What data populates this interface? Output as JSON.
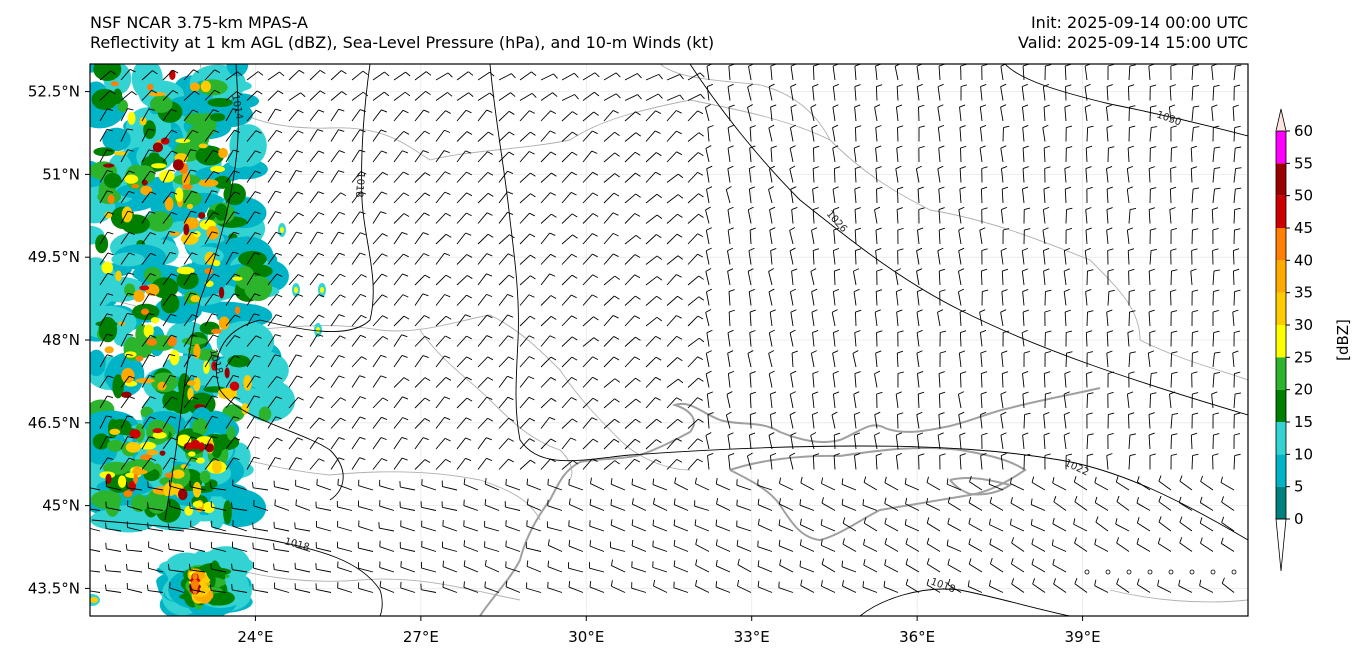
{
  "header": {
    "title_line1": "NSF NCAR 3.75-km MPAS-A",
    "title_line2": "Reflectivity at 1 km AGL (dBZ), Sea-Level Pressure (hPa), and 10-m Winds (kt)",
    "init": "Init: 2025-09-14 00:00 UTC",
    "valid": "Valid: 2025-09-14 15:00 UTC"
  },
  "map": {
    "lon_range": [
      21,
      42
    ],
    "lat_range": [
      43.0,
      53.0
    ],
    "lon_ticks": [
      "24°E",
      "27°E",
      "30°E",
      "33°E",
      "36°E",
      "39°E"
    ],
    "lon_tick_values": [
      24,
      27,
      30,
      33,
      36,
      39
    ],
    "lat_ticks": [
      "52.5°N",
      "51°N",
      "49.5°N",
      "48°N",
      "46.5°N",
      "45°N",
      "43.5°N"
    ],
    "lat_tick_values": [
      52.5,
      51,
      49.5,
      48,
      46.5,
      45,
      43.5
    ],
    "isobar_labels": [
      "1014",
      "1018",
      "1018",
      "1018",
      "1026",
      "1030",
      "1022",
      "1018"
    ]
  },
  "colorbar": {
    "label": "[dBZ]",
    "ticks": [
      "0",
      "5",
      "10",
      "15",
      "20",
      "25",
      "30",
      "35",
      "40",
      "45",
      "50",
      "55",
      "60"
    ],
    "colors": [
      "#00807f",
      "#00b4c8",
      "#33d3d3",
      "#008000",
      "#2db42d",
      "#ffff00",
      "#ffcc00",
      "#ffaa00",
      "#ff7f00",
      "#cc0000",
      "#990000",
      "#ff00ff",
      "#ffe4e1"
    ]
  }
}
